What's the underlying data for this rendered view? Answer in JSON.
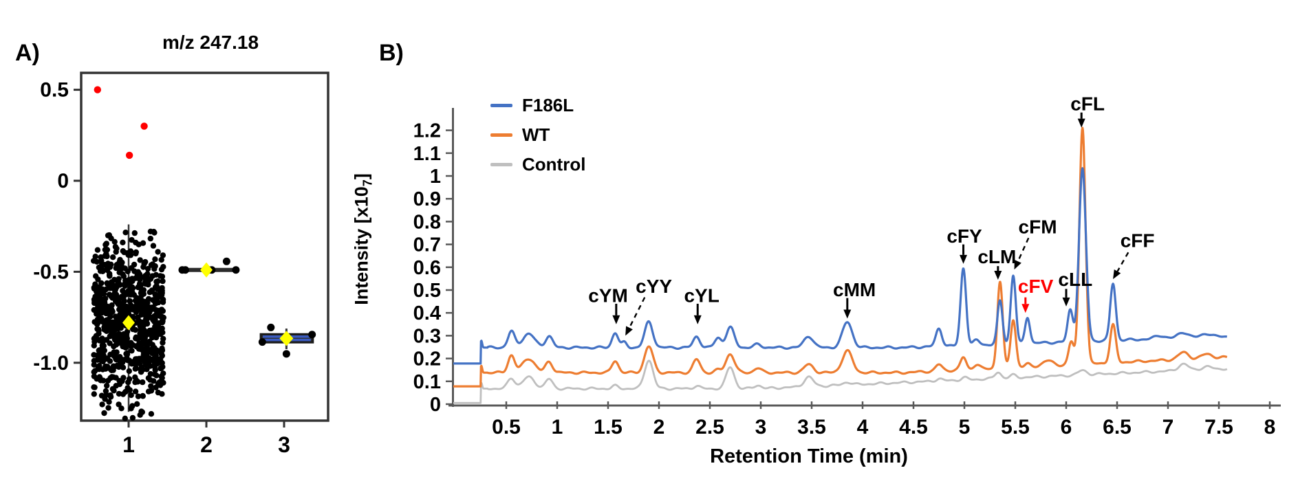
{
  "figure": {
    "panel_a": {
      "label": "A)",
      "title": "m/z 247.18",
      "y_ticks": [
        {
          "label": "0.5",
          "value": 0.5
        },
        {
          "label": "0",
          "value": 0
        },
        {
          "label": "-0.5",
          "value": -0.5
        },
        {
          "label": "-1.0",
          "value": -1.0
        }
      ],
      "x_ticks": [
        {
          "label": "1",
          "value": 1
        },
        {
          "label": "2",
          "value": 2
        },
        {
          "label": "3",
          "value": 3
        }
      ]
    },
    "panel_b": {
      "label": "B)",
      "legend": [
        {
          "label": "F186L",
          "color": "#4472C4"
        },
        {
          "label": "WT",
          "color": "#ED7D31"
        },
        {
          "label": "Control",
          "color": "#BFBFBF"
        }
      ],
      "xlabel": "Retention Time (min)",
      "ylabel_pre": "Intensity  [x10",
      "ylabel_sub": "7",
      "ylabel_post": "]"
    }
  },
  "chart_data": [
    {
      "type": "scatter",
      "title": "m/z 247.18",
      "xlabel": "",
      "ylabel": "",
      "xlim": [
        0.39,
        3.57
      ],
      "ylim": [
        -1.33,
        0.6
      ],
      "y_ticks": [
        0.5,
        0,
        -0.5,
        -1.0
      ],
      "x_ticks": [
        1,
        2,
        3
      ],
      "marker_colors": {
        "points": "#000000",
        "outliers": "#FF0000",
        "mean_marker": "#FFFF00",
        "box_edge": "#3B5BC0",
        "box_fill": "#2e2e2e",
        "line": "#2b2b2b"
      },
      "groups": [
        {
          "x": 1,
          "style": "jitter-cloud",
          "n": 780,
          "mean": -0.78,
          "sd": 0.23,
          "clip": [
            -1.31,
            -0.265
          ],
          "jitter": 0.45,
          "whisker": [
            -1.27,
            -0.24
          ],
          "mean_marker": [
            1.0,
            -0.78
          ],
          "red_outliers": [
            [
              0.6,
              0.5
            ],
            [
              1.2,
              0.3
            ],
            [
              1.01,
              0.14
            ]
          ]
        },
        {
          "x": 2,
          "style": "flat-line",
          "line_y": -0.49,
          "line_x": [
            1.66,
            2.4
          ],
          "points": [
            [
              1.69,
              -0.49
            ],
            [
              1.73,
              -0.49
            ],
            [
              2.03,
              -0.49
            ],
            [
              2.07,
              -0.49
            ],
            [
              2.38,
              -0.49
            ],
            [
              2.26,
              -0.443
            ]
          ],
          "mean_marker": [
            2.0,
            -0.49
          ]
        },
        {
          "x": 3,
          "style": "box",
          "box_x": [
            2.7,
            3.37
          ],
          "box_y": [
            -0.888,
            -0.843
          ],
          "whisker_x": 3.03,
          "whisker": [
            -0.925,
            -0.812
          ],
          "points": [
            [
              2.83,
              -0.806
            ],
            [
              2.72,
              -0.886
            ],
            [
              3.03,
              -0.951
            ],
            [
              3.36,
              -0.845
            ]
          ],
          "mean_marker": [
            3.03,
            -0.866
          ]
        }
      ]
    },
    {
      "type": "line",
      "title": "",
      "xlabel": "Retention Time (min)",
      "ylabel": "Intensity [x10 7 ]",
      "xlim": [
        0,
        8.1
      ],
      "ylim": [
        0,
        1.3
      ],
      "x_ticks": [
        0.5,
        1,
        1.5,
        2,
        2.5,
        3,
        3.5,
        4,
        4.5,
        5,
        5.5,
        6,
        6.5,
        7,
        7.5,
        8
      ],
      "x_tick_labels": [
        "0.5",
        "1",
        "1.5",
        "2",
        "2.5",
        "3",
        "3.5",
        "4",
        "4.5",
        "5",
        "5.5",
        "6",
        "6.5",
        "7",
        "7.5",
        "8"
      ],
      "y_ticks": [
        0,
        0.1,
        0.2,
        0.3,
        0.4,
        0.5,
        0.6,
        0.7,
        0.8,
        0.9,
        1,
        1.1,
        1.2
      ],
      "y_tick_labels": [
        "0",
        "0.1",
        "0.2",
        "0.3",
        "0.4",
        "0.5",
        "0.6",
        "0.7",
        "0.8",
        "0.9",
        "1",
        "1.1",
        "1.2"
      ],
      "legend_position": "top-left-inside",
      "grid": false,
      "x_range": [
        -0.02,
        7.58
      ],
      "step_x": 0.25,
      "series": [
        {
          "name": "Control",
          "color": "#BFBFBF",
          "width": 2.8,
          "start_level": 0.005,
          "baseline": 0.068,
          "drift": {
            "amount": 0.087,
            "from": 3.0,
            "to": 7.55
          },
          "peaks": [
            [
              0.255,
              0.025,
              0.008
            ],
            [
              0.55,
              0.045,
              0.035
            ],
            [
              0.72,
              0.05,
              0.06
            ],
            [
              0.92,
              0.042,
              0.035
            ],
            [
              1.57,
              0.012,
              0.03
            ],
            [
              1.9,
              0.125,
              0.042
            ],
            [
              2.37,
              0.012,
              0.03
            ],
            [
              2.7,
              0.095,
              0.04
            ],
            [
              2.97,
              0.015,
              0.035
            ],
            [
              3.47,
              0.042,
              0.045
            ],
            [
              3.85,
              0.012,
              0.04
            ],
            [
              4.75,
              0.01,
              0.03
            ],
            [
              5.0,
              0.01,
              0.03
            ],
            [
              5.33,
              0.028,
              0.03
            ],
            [
              5.48,
              0.012,
              0.03
            ],
            [
              6.16,
              0.02,
              0.04
            ],
            [
              7.15,
              0.028,
              0.05
            ],
            [
              7.38,
              0.012,
              0.05
            ]
          ]
        },
        {
          "name": "WT",
          "color": "#ED7D31",
          "width": 3.2,
          "start_level": 0.078,
          "baseline": 0.138,
          "drift": {
            "amount": 0.067,
            "from": 4.4,
            "to": 7.55
          },
          "peaks": [
            [
              0.255,
              0.03,
              0.008
            ],
            [
              0.55,
              0.075,
              0.033
            ],
            [
              0.72,
              0.062,
              0.06
            ],
            [
              0.92,
              0.048,
              0.035
            ],
            [
              1.57,
              0.052,
              0.032
            ],
            [
              1.9,
              0.115,
              0.042
            ],
            [
              2.37,
              0.058,
              0.035
            ],
            [
              2.58,
              0.012,
              0.03
            ],
            [
              2.7,
              0.082,
              0.042
            ],
            [
              2.97,
              0.02,
              0.035
            ],
            [
              3.47,
              0.036,
              0.045
            ],
            [
              3.85,
              0.095,
              0.05
            ],
            [
              4.75,
              0.028,
              0.032
            ],
            [
              4.99,
              0.055,
              0.028
            ],
            [
              5.12,
              0.02,
              0.03
            ],
            [
              5.35,
              0.38,
              0.026
            ],
            [
              5.48,
              0.21,
              0.026
            ],
            [
              5.62,
              0.012,
              0.025
            ],
            [
              5.82,
              0.022,
              0.05
            ],
            [
              6.05,
              0.1,
              0.026
            ],
            [
              6.16,
              1.04,
              0.03
            ],
            [
              6.46,
              0.165,
              0.028
            ],
            [
              7.15,
              0.03,
              0.05
            ],
            [
              7.38,
              0.018,
              0.05
            ]
          ]
        },
        {
          "name": "F186L",
          "color": "#4472C4",
          "width": 3.2,
          "start_level": 0.178,
          "baseline": 0.248,
          "drift": {
            "amount": 0.048,
            "from": 4.4,
            "to": 7.55
          },
          "peaks": [
            [
              0.255,
              0.03,
              0.008
            ],
            [
              0.55,
              0.07,
              0.033
            ],
            [
              0.72,
              0.06,
              0.06
            ],
            [
              0.92,
              0.05,
              0.035
            ],
            [
              1.57,
              0.065,
              0.03
            ],
            [
              1.66,
              0.022,
              0.025
            ],
            [
              1.9,
              0.112,
              0.04
            ],
            [
              2.37,
              0.048,
              0.033
            ],
            [
              2.58,
              0.042,
              0.033
            ],
            [
              2.7,
              0.088,
              0.04
            ],
            [
              2.97,
              0.014,
              0.035
            ],
            [
              3.47,
              0.05,
              0.045
            ],
            [
              3.85,
              0.112,
              0.048
            ],
            [
              4.75,
              0.078,
              0.03
            ],
            [
              4.99,
              0.34,
              0.027
            ],
            [
              5.12,
              0.022,
              0.03
            ],
            [
              5.35,
              0.19,
              0.025
            ],
            [
              5.48,
              0.3,
              0.025
            ],
            [
              5.62,
              0.115,
              0.024
            ],
            [
              6.04,
              0.14,
              0.026
            ],
            [
              6.16,
              0.755,
              0.034
            ],
            [
              6.46,
              0.25,
              0.027
            ],
            [
              6.92,
              0.014,
              0.05
            ],
            [
              7.15,
              0.025,
              0.05
            ],
            [
              7.38,
              0.016,
              0.05
            ]
          ]
        }
      ],
      "annotations": [
        {
          "label": "cYM",
          "color": "#000000",
          "dashed": false,
          "text": [
            1.5,
            0.475
          ],
          "tail": [
            1.58,
            0.44
          ],
          "tip": [
            1.58,
            0.35
          ]
        },
        {
          "label": "cYY",
          "color": "#000000",
          "dashed": true,
          "text": [
            1.95,
            0.515
          ],
          "tail": [
            1.86,
            0.468
          ],
          "tip": [
            1.67,
            0.3
          ]
        },
        {
          "label": "cYL",
          "color": "#000000",
          "dashed": false,
          "text": [
            2.42,
            0.475
          ],
          "tail": [
            2.38,
            0.44
          ],
          "tip": [
            2.38,
            0.35
          ]
        },
        {
          "label": "cMM",
          "color": "#000000",
          "dashed": false,
          "text": [
            3.92,
            0.5
          ],
          "tail": [
            3.85,
            0.465
          ],
          "tip": [
            3.85,
            0.375
          ]
        },
        {
          "label": "cFY",
          "color": "#000000",
          "dashed": false,
          "text": [
            5.0,
            0.735
          ],
          "tail": [
            4.99,
            0.7
          ],
          "tip": [
            4.99,
            0.615
          ]
        },
        {
          "label": "cLM",
          "color": "#000000",
          "dashed": false,
          "text": [
            5.32,
            0.645
          ],
          "tail": [
            5.33,
            0.605
          ],
          "tip": [
            5.33,
            0.545
          ]
        },
        {
          "label": "cFM",
          "color": "#000000",
          "dashed": true,
          "text": [
            5.72,
            0.775
          ],
          "tail": [
            5.63,
            0.728
          ],
          "tip": [
            5.49,
            0.59
          ]
        },
        {
          "label": "cFV",
          "color": "#FF0000",
          "dashed": false,
          "text": [
            5.7,
            0.515
          ],
          "tail": [
            5.6,
            0.468
          ],
          "tip": [
            5.6,
            0.4
          ]
        },
        {
          "label": "cLL",
          "color": "#000000",
          "dashed": false,
          "text": [
            6.09,
            0.545
          ],
          "tail": [
            6.0,
            0.505
          ],
          "tip": [
            6.0,
            0.428
          ]
        },
        {
          "label": "cFL",
          "color": "#000000",
          "dashed": false,
          "text": [
            6.21,
            1.315
          ],
          "tail": [
            6.15,
            1.278
          ],
          "tip": [
            6.15,
            1.212
          ]
        },
        {
          "label": "cFF",
          "color": "#000000",
          "dashed": true,
          "text": [
            6.7,
            0.715
          ],
          "tail": [
            6.61,
            0.665
          ],
          "tip": [
            6.46,
            0.548
          ]
        }
      ]
    }
  ]
}
